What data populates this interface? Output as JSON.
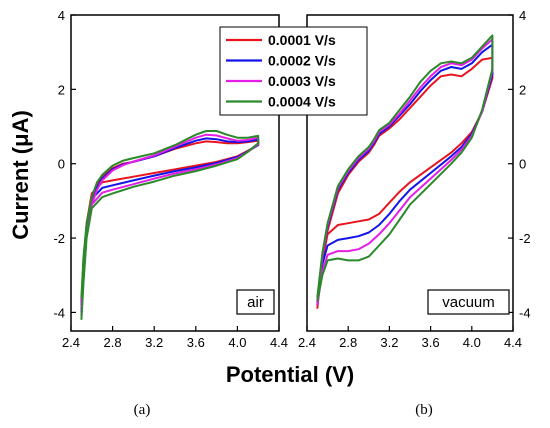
{
  "figure": {
    "ylabel": "Current (μA)",
    "xlabel": "Potential (V)",
    "captions": [
      "(a)",
      "(b)"
    ]
  },
  "legend": {
    "placement": "top-center",
    "items": [
      {
        "label": "0.0001 V/s",
        "color": "#e8141e"
      },
      {
        "label": "0.0002 V/s",
        "color": "#1414e8"
      },
      {
        "label": "0.0003 V/s",
        "color": "#e51ee5"
      },
      {
        "label": "0.0004 V/s",
        "color": "#2a8a2a"
      }
    ]
  },
  "chart_data": [
    {
      "type": "line",
      "panel_label": "air",
      "caption": "(a)",
      "xlabel": "Potential (V)",
      "ylabel": "Current (μA)",
      "xlim": [
        2.4,
        4.4
      ],
      "ylim": [
        -4.5,
        4
      ],
      "xticks": [
        "2.4",
        "2.8",
        "3.2",
        "3.6",
        "4.0",
        "4.4"
      ],
      "yticks": [
        "-4",
        "-2",
        "0",
        "2",
        "4"
      ],
      "grid": false,
      "series": [
        {
          "name": "0.0001 V/s",
          "color": "#e8141e",
          "x": [
            2.5,
            2.52,
            2.55,
            2.6,
            2.65,
            2.7,
            2.8,
            2.9,
            3.0,
            3.2,
            3.4,
            3.6,
            3.7,
            3.8,
            3.9,
            4.0,
            4.1,
            4.2,
            4.2,
            4.1,
            4.0,
            3.8,
            3.6,
            3.4,
            3.2,
            3.0,
            2.8,
            2.7,
            2.6,
            2.55,
            2.52,
            2.5
          ],
          "y": [
            -3.7,
            -2.6,
            -1.7,
            -1.0,
            -0.6,
            -0.35,
            -0.12,
            0.0,
            0.05,
            0.2,
            0.4,
            0.55,
            0.6,
            0.58,
            0.55,
            0.55,
            0.58,
            0.62,
            0.5,
            0.35,
            0.2,
            0.05,
            -0.05,
            -0.15,
            -0.25,
            -0.35,
            -0.45,
            -0.5,
            -0.8,
            -1.6,
            -2.8,
            -3.9
          ]
        },
        {
          "name": "0.0002 V/s",
          "color": "#1414e8",
          "x": [
            2.5,
            2.52,
            2.55,
            2.6,
            2.65,
            2.7,
            2.8,
            2.9,
            3.0,
            3.2,
            3.4,
            3.6,
            3.7,
            3.8,
            3.9,
            4.0,
            4.1,
            4.2,
            4.2,
            4.1,
            4.0,
            3.8,
            3.6,
            3.4,
            3.2,
            3.0,
            2.8,
            2.7,
            2.6,
            2.55,
            2.52,
            2.5
          ],
          "y": [
            -3.8,
            -2.7,
            -1.8,
            -1.05,
            -0.65,
            -0.4,
            -0.15,
            -0.02,
            0.05,
            0.2,
            0.42,
            0.62,
            0.68,
            0.66,
            0.6,
            0.58,
            0.6,
            0.65,
            0.5,
            0.33,
            0.18,
            0.02,
            -0.1,
            -0.2,
            -0.32,
            -0.45,
            -0.58,
            -0.65,
            -0.95,
            -1.75,
            -2.95,
            -4.0
          ]
        },
        {
          "name": "0.0003 V/s",
          "color": "#e51ee5",
          "x": [
            2.5,
            2.52,
            2.55,
            2.6,
            2.65,
            2.7,
            2.8,
            2.9,
            3.0,
            3.2,
            3.4,
            3.6,
            3.7,
            3.8,
            3.9,
            4.0,
            4.1,
            4.2,
            4.2,
            4.1,
            4.0,
            3.8,
            3.6,
            3.4,
            3.2,
            3.0,
            2.8,
            2.7,
            2.6,
            2.55,
            2.52,
            2.5
          ],
          "y": [
            -3.9,
            -2.8,
            -1.9,
            -1.1,
            -0.7,
            -0.45,
            -0.18,
            -0.04,
            0.06,
            0.22,
            0.46,
            0.7,
            0.78,
            0.76,
            0.68,
            0.62,
            0.64,
            0.7,
            0.52,
            0.32,
            0.15,
            -0.02,
            -0.15,
            -0.26,
            -0.4,
            -0.55,
            -0.7,
            -0.78,
            -1.1,
            -1.9,
            -3.1,
            -4.1
          ]
        },
        {
          "name": "0.0004 V/s",
          "color": "#2a8a2a",
          "x": [
            2.5,
            2.52,
            2.55,
            2.6,
            2.65,
            2.7,
            2.8,
            2.9,
            3.0,
            3.2,
            3.4,
            3.6,
            3.7,
            3.8,
            3.9,
            4.0,
            4.1,
            4.2,
            4.2,
            4.1,
            4.0,
            3.8,
            3.6,
            3.4,
            3.2,
            3.0,
            2.8,
            2.7,
            2.6,
            2.55,
            2.52,
            2.5
          ],
          "y": [
            -3.6,
            -2.5,
            -1.6,
            -0.9,
            -0.5,
            -0.3,
            -0.05,
            0.08,
            0.15,
            0.28,
            0.5,
            0.78,
            0.88,
            0.88,
            0.78,
            0.7,
            0.7,
            0.75,
            0.55,
            0.32,
            0.12,
            -0.05,
            -0.2,
            -0.32,
            -0.48,
            -0.62,
            -0.8,
            -0.9,
            -1.2,
            -2.0,
            -3.2,
            -4.2
          ]
        }
      ]
    },
    {
      "type": "line",
      "panel_label": "vacuum",
      "caption": "(b)",
      "xlabel": "Potential (V)",
      "ylabel": "Current (μA)",
      "xlim": [
        2.4,
        4.4
      ],
      "ylim": [
        -4.5,
        4
      ],
      "xticks": [
        "2.4",
        "2.8",
        "3.2",
        "3.6",
        "4.0",
        "4.4"
      ],
      "yticks": [
        "-4",
        "-2",
        "0",
        "2",
        "4"
      ],
      "grid": false,
      "series": [
        {
          "name": "0.0001 V/s",
          "color": "#e8141e",
          "x": [
            2.5,
            2.55,
            2.6,
            2.7,
            2.8,
            2.9,
            3.0,
            3.05,
            3.1,
            3.2,
            3.3,
            3.4,
            3.5,
            3.6,
            3.7,
            3.8,
            3.9,
            4.0,
            4.1,
            4.2,
            4.2,
            4.1,
            4.0,
            3.9,
            3.8,
            3.6,
            3.4,
            3.3,
            3.2,
            3.1,
            3.0,
            2.9,
            2.8,
            2.7,
            2.6,
            2.55,
            2.5
          ],
          "y": [
            -3.8,
            -2.6,
            -1.8,
            -0.8,
            -0.3,
            0.05,
            0.3,
            0.5,
            0.75,
            0.95,
            1.2,
            1.5,
            1.8,
            2.1,
            2.35,
            2.4,
            2.35,
            2.55,
            2.8,
            2.85,
            2.3,
            1.4,
            0.85,
            0.55,
            0.3,
            -0.1,
            -0.5,
            -0.75,
            -1.05,
            -1.35,
            -1.5,
            -1.55,
            -1.6,
            -1.65,
            -1.9,
            -2.6,
            -3.9
          ]
        },
        {
          "name": "0.0002 V/s",
          "color": "#1414e8",
          "x": [
            2.5,
            2.55,
            2.6,
            2.7,
            2.8,
            2.9,
            3.0,
            3.05,
            3.1,
            3.2,
            3.3,
            3.4,
            3.5,
            3.6,
            3.7,
            3.8,
            3.9,
            4.0,
            4.1,
            4.2,
            4.2,
            4.1,
            4.0,
            3.9,
            3.8,
            3.6,
            3.4,
            3.3,
            3.2,
            3.1,
            3.0,
            2.9,
            2.8,
            2.7,
            2.6,
            2.55,
            2.5
          ],
          "y": [
            -3.7,
            -2.5,
            -1.7,
            -0.7,
            -0.25,
            0.1,
            0.35,
            0.55,
            0.8,
            1.0,
            1.3,
            1.6,
            1.95,
            2.25,
            2.5,
            2.6,
            2.55,
            2.7,
            3.0,
            3.2,
            2.4,
            1.4,
            0.8,
            0.45,
            0.2,
            -0.25,
            -0.7,
            -1.0,
            -1.35,
            -1.65,
            -1.85,
            -1.95,
            -2.0,
            -2.05,
            -2.2,
            -2.7,
            -3.8
          ]
        },
        {
          "name": "0.0003 V/s",
          "color": "#e51ee5",
          "x": [
            2.5,
            2.55,
            2.6,
            2.7,
            2.8,
            2.9,
            3.0,
            3.05,
            3.1,
            3.2,
            3.3,
            3.4,
            3.5,
            3.6,
            3.7,
            3.8,
            3.9,
            4.0,
            4.1,
            4.2,
            4.2,
            4.1,
            4.0,
            3.9,
            3.8,
            3.6,
            3.4,
            3.3,
            3.2,
            3.1,
            3.0,
            2.9,
            2.8,
            2.7,
            2.6,
            2.55,
            2.5
          ],
          "y": [
            -3.7,
            -2.5,
            -1.65,
            -0.65,
            -0.2,
            0.15,
            0.4,
            0.6,
            0.85,
            1.05,
            1.35,
            1.7,
            2.05,
            2.35,
            2.6,
            2.7,
            2.65,
            2.8,
            3.1,
            3.35,
            2.5,
            1.4,
            0.75,
            0.38,
            0.1,
            -0.4,
            -0.9,
            -1.25,
            -1.6,
            -1.9,
            -2.15,
            -2.3,
            -2.35,
            -2.35,
            -2.45,
            -2.9,
            -3.8
          ]
        },
        {
          "name": "0.0004 V/s",
          "color": "#2a8a2a",
          "x": [
            2.5,
            2.55,
            2.6,
            2.7,
            2.8,
            2.9,
            3.0,
            3.05,
            3.1,
            3.2,
            3.3,
            3.4,
            3.5,
            3.6,
            3.7,
            3.8,
            3.9,
            4.0,
            4.1,
            4.2,
            4.2,
            4.1,
            4.0,
            3.9,
            3.8,
            3.6,
            3.4,
            3.3,
            3.2,
            3.1,
            3.0,
            2.9,
            2.8,
            2.7,
            2.6,
            2.55,
            2.5
          ],
          "y": [
            -3.6,
            -2.4,
            -1.6,
            -0.6,
            -0.15,
            0.2,
            0.45,
            0.65,
            0.9,
            1.1,
            1.45,
            1.8,
            2.2,
            2.5,
            2.7,
            2.75,
            2.7,
            2.85,
            3.15,
            3.45,
            2.55,
            1.45,
            0.7,
            0.3,
            0.0,
            -0.55,
            -1.1,
            -1.5,
            -1.9,
            -2.2,
            -2.5,
            -2.6,
            -2.6,
            -2.55,
            -2.6,
            -3.0,
            -3.7
          ]
        }
      ]
    }
  ]
}
